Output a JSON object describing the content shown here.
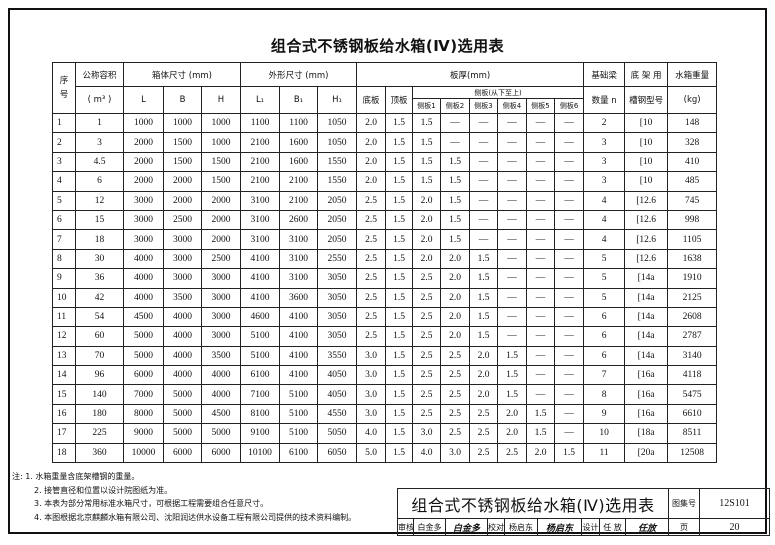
{
  "title": "组合式不锈钢板给水箱(Ⅳ)选用表",
  "table": {
    "headers": {
      "seq": "序号",
      "volume": "公称容积",
      "volume_unit": "( m³ )",
      "box_size": "箱体尺寸 (mm)",
      "outer_size": "外形尺寸 (mm)",
      "thickness": "板厚(mm)",
      "beam_count": "基础梁",
      "beam_count2": "数量 n",
      "channel": "底 架 用",
      "channel2": "槽钢型号",
      "weight": "水箱重量",
      "weight_unit": "(kg)",
      "L": "L",
      "B": "B",
      "H": "H",
      "L1": "L₁",
      "B1": "B₁",
      "H1": "H₁",
      "bottom": "底板",
      "top": "顶板",
      "side": "侧板(从下至上)",
      "side_cols": [
        "侧板1",
        "侧板2",
        "侧板3",
        "侧板4",
        "侧板5",
        "侧板6"
      ]
    },
    "rows": [
      [
        "1",
        "1",
        "1000",
        "1000",
        "1000",
        "1100",
        "1100",
        "1050",
        "2.0",
        "1.5",
        "1.5",
        "—",
        "—",
        "—",
        "—",
        "—",
        "2",
        "[10",
        "148"
      ],
      [
        "2",
        "3",
        "2000",
        "1500",
        "1000",
        "2100",
        "1600",
        "1050",
        "2.0",
        "1.5",
        "1.5",
        "—",
        "—",
        "—",
        "—",
        "—",
        "3",
        "[10",
        "328"
      ],
      [
        "3",
        "4.5",
        "2000",
        "1500",
        "1500",
        "2100",
        "1600",
        "1550",
        "2.0",
        "1.5",
        "1.5",
        "1.5",
        "—",
        "—",
        "—",
        "—",
        "3",
        "[10",
        "410"
      ],
      [
        "4",
        "6",
        "2000",
        "2000",
        "1500",
        "2100",
        "2100",
        "1550",
        "2.0",
        "1.5",
        "1.5",
        "1.5",
        "—",
        "—",
        "—",
        "—",
        "3",
        "[10",
        "485"
      ],
      [
        "5",
        "12",
        "3000",
        "2000",
        "2000",
        "3100",
        "2100",
        "2050",
        "2.5",
        "1.5",
        "2.0",
        "1.5",
        "—",
        "—",
        "—",
        "—",
        "4",
        "[12.6",
        "745"
      ],
      [
        "6",
        "15",
        "3000",
        "2500",
        "2000",
        "3100",
        "2600",
        "2050",
        "2.5",
        "1.5",
        "2.0",
        "1.5",
        "—",
        "—",
        "—",
        "—",
        "4",
        "[12.6",
        "998"
      ],
      [
        "7",
        "18",
        "3000",
        "3000",
        "2000",
        "3100",
        "3100",
        "2050",
        "2.5",
        "1.5",
        "2.0",
        "1.5",
        "—",
        "—",
        "—",
        "—",
        "4",
        "[12.6",
        "1105"
      ],
      [
        "8",
        "30",
        "4000",
        "3000",
        "2500",
        "4100",
        "3100",
        "2550",
        "2.5",
        "1.5",
        "2.0",
        "2.0",
        "1.5",
        "—",
        "—",
        "—",
        "5",
        "[12.6",
        "1638"
      ],
      [
        "9",
        "36",
        "4000",
        "3000",
        "3000",
        "4100",
        "3100",
        "3050",
        "2.5",
        "1.5",
        "2.5",
        "2.0",
        "1.5",
        "—",
        "—",
        "—",
        "5",
        "[14a",
        "1910"
      ],
      [
        "10",
        "42",
        "4000",
        "3500",
        "3000",
        "4100",
        "3600",
        "3050",
        "2.5",
        "1.5",
        "2.5",
        "2.0",
        "1.5",
        "—",
        "—",
        "—",
        "5",
        "[14a",
        "2125"
      ],
      [
        "11",
        "54",
        "4500",
        "4000",
        "3000",
        "4600",
        "4100",
        "3050",
        "2.5",
        "1.5",
        "2.5",
        "2.0",
        "1.5",
        "—",
        "—",
        "—",
        "6",
        "[14a",
        "2608"
      ],
      [
        "12",
        "60",
        "5000",
        "4000",
        "3000",
        "5100",
        "4100",
        "3050",
        "2.5",
        "1.5",
        "2.5",
        "2.0",
        "1.5",
        "—",
        "—",
        "—",
        "6",
        "[14a",
        "2787"
      ],
      [
        "13",
        "70",
        "5000",
        "4000",
        "3500",
        "5100",
        "4100",
        "3550",
        "3.0",
        "1.5",
        "2.5",
        "2.5",
        "2.0",
        "1.5",
        "—",
        "—",
        "6",
        "[14a",
        "3140"
      ],
      [
        "14",
        "96",
        "6000",
        "4000",
        "4000",
        "6100",
        "4100",
        "4050",
        "3.0",
        "1.5",
        "2.5",
        "2.5",
        "2.0",
        "1.5",
        "—",
        "—",
        "7",
        "[16a",
        "4118"
      ],
      [
        "15",
        "140",
        "7000",
        "5000",
        "4000",
        "7100",
        "5100",
        "4050",
        "3.0",
        "1.5",
        "2.5",
        "2.5",
        "2.0",
        "1.5",
        "—",
        "—",
        "8",
        "[16a",
        "5475"
      ],
      [
        "16",
        "180",
        "8000",
        "5000",
        "4500",
        "8100",
        "5100",
        "4550",
        "3.0",
        "1.5",
        "2.5",
        "2.5",
        "2.5",
        "2.0",
        "1.5",
        "—",
        "9",
        "[16a",
        "6610"
      ],
      [
        "17",
        "225",
        "9000",
        "5000",
        "5000",
        "9100",
        "5100",
        "5050",
        "4.0",
        "1.5",
        "3.0",
        "2.5",
        "2.5",
        "2.0",
        "1.5",
        "—",
        "10",
        "[18a",
        "8511"
      ],
      [
        "18",
        "360",
        "10000",
        "6000",
        "6000",
        "10100",
        "6100",
        "6050",
        "5.0",
        "1.5",
        "4.0",
        "3.0",
        "2.5",
        "2.5",
        "2.0",
        "1.5",
        "11",
        "[20a",
        "12508"
      ]
    ]
  },
  "notes": {
    "prefix": "注: 1. 水箱重量含底架槽钢的重量。",
    "items": [
      "2. 接管直径和位置以设计院图纸为准。",
      "3. 本表为部分常用标准水箱尺寸，可根据工程需要组合任意尺寸。",
      "4. 本图根据北京麒麟水箱有限公司、沈阳润达供水设备工程有限公司提供的技术资料编制。"
    ]
  },
  "title_block": {
    "title": "组合式不锈钢板给水箱(Ⅳ)选用表",
    "atlas_label": "图集号",
    "atlas_no": "12S101",
    "review_label": "审核",
    "reviewer": "白金多",
    "reviewer_sig": "白金多",
    "check_label": "校对",
    "checker": "杨启东",
    "checker_sig": "杨启东",
    "design_label": "设计",
    "designer": "任 放",
    "designer_sig": "任放",
    "page_label": "页",
    "page_no": "20"
  }
}
